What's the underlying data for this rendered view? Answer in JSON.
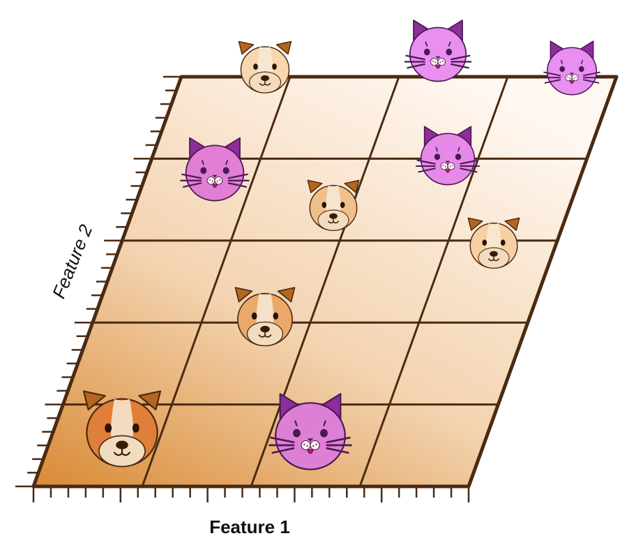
{
  "axes": {
    "x_label": "Feature 1",
    "y_label": "Feature 2"
  },
  "colors": {
    "grid_line": "#4a2a12",
    "dog_fur": "#e8b98a",
    "dog_ear": "#b5651d",
    "cat_fur": "#e28be6",
    "cat_ear": "#8e2d9c",
    "plane_dark": "#d98a34",
    "plane_light": "#fff6ee"
  },
  "legend_items": [
    {
      "kind": "dog",
      "icon": "dog-face-icon"
    },
    {
      "kind": "cat",
      "icon": "cat-face-icon"
    }
  ]
}
